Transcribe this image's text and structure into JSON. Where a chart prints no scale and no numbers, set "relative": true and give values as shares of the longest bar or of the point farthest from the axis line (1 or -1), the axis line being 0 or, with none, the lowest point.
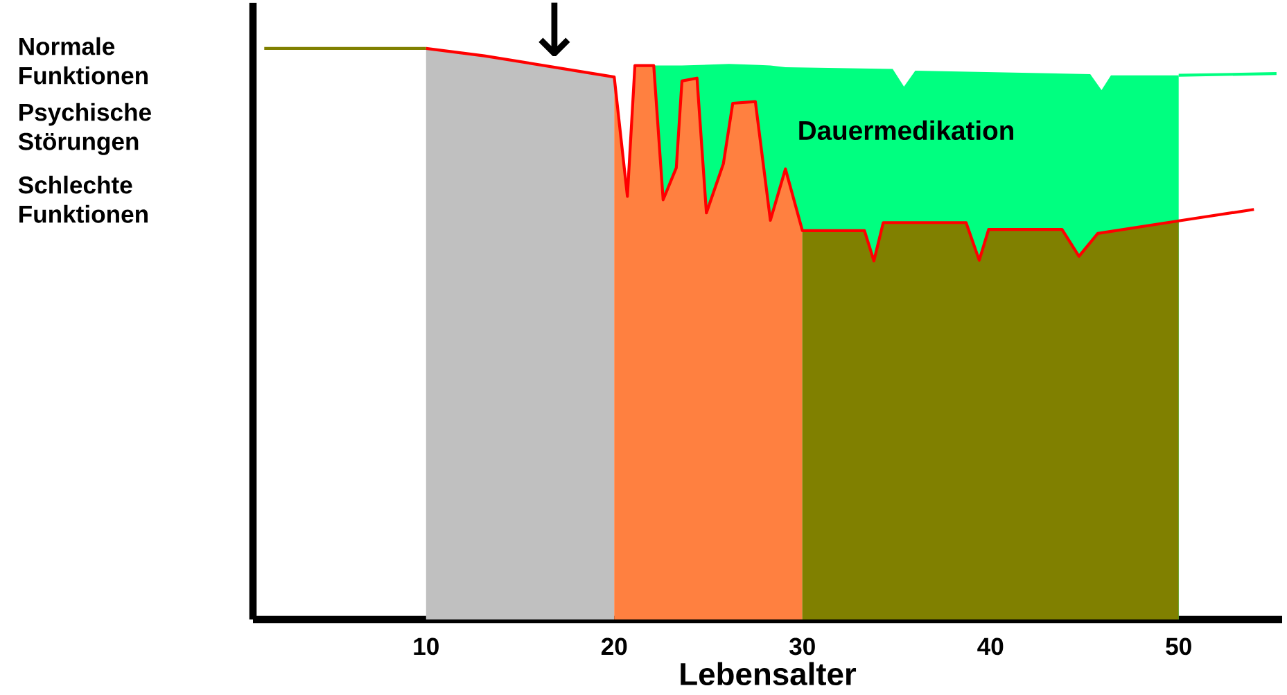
{
  "chart_data": {
    "type": "area",
    "relative": true,
    "xlabel": "Lebensalter",
    "xlim": [
      0.8,
      55.5
    ],
    "xticks": [
      10,
      20,
      30,
      40,
      50
    ],
    "series": [
      {
        "type": "line",
        "color": "#808000",
        "x": [
          1.4,
          10
        ],
        "values": [
          1.0,
          1.0
        ]
      },
      {
        "color": "#c0c0c0",
        "x": [
          10,
          13.1,
          20
        ],
        "values": [
          1.0,
          0.987,
          0.95
        ]
      },
      {
        "color": "#00ff80",
        "x": [
          22.1,
          22.6,
          23.6,
          26.1,
          27.1,
          27.7,
          28.3,
          28.6,
          29.1,
          34.8,
          35.4,
          36.0,
          45.3,
          45.9,
          46.4,
          50
        ],
        "values": [
          0.97,
          null,
          0.97,
          0.973,
          null,
          0.971,
          0.97,
          null,
          0.967,
          0.964,
          0.933,
          0.961,
          0.955,
          0.927,
          0.953,
          0.953
        ]
      },
      {
        "type": "line",
        "color": "#00ff80",
        "x": [
          50,
          55.2
        ],
        "values": [
          0.953,
          0.956
        ]
      },
      {
        "color": "#ff8040",
        "x": [
          20,
          20.7,
          21.1,
          22.1,
          22.6,
          23.3,
          23.6,
          24.4,
          24.9,
          25.8,
          26.3,
          27.5,
          28.3,
          29.1,
          30
        ],
        "values": [
          0.95,
          0.741,
          0.97,
          0.97,
          0.735,
          0.791,
          0.943,
          0.948,
          0.712,
          0.798,
          0.904,
          0.907,
          0.699,
          0.789,
          0.681
        ]
      },
      {
        "color": "#808000",
        "x": [
          30,
          33.3,
          33.8,
          34.3,
          38.7,
          39.4,
          39.9,
          43.8,
          44.7,
          45.7,
          50
        ],
        "values": [
          0.681,
          0.681,
          0.628,
          0.695,
          0.695,
          0.629,
          0.683,
          0.683,
          0.636,
          0.676,
          0.698
        ]
      },
      {
        "type": "line",
        "color": "#ff0000",
        "x": [
          10,
          13.1,
          20,
          20.7,
          21.1,
          22.1,
          22.6,
          23.3,
          23.6,
          24.4,
          24.9,
          25.8,
          26.3,
          27.5,
          28.3,
          29.1,
          30,
          33.3,
          33.8,
          34.3,
          38.7,
          39.4,
          39.9,
          43.8,
          44.7,
          45.7,
          50,
          54.0
        ],
        "values": [
          1.0,
          0.987,
          0.95,
          0.741,
          0.97,
          0.97,
          0.735,
          0.791,
          0.943,
          0.948,
          0.712,
          0.798,
          0.904,
          0.907,
          0.699,
          0.789,
          0.681,
          0.681,
          0.628,
          0.695,
          0.695,
          0.629,
          0.683,
          0.683,
          0.636,
          0.676,
          0.698,
          0.718
        ]
      }
    ],
    "annotations": [
      "Normale Funktionen",
      "Psychische Störungen",
      "Schlechte Funktionen",
      "Dauermedikation",
      "↓"
    ]
  }
}
